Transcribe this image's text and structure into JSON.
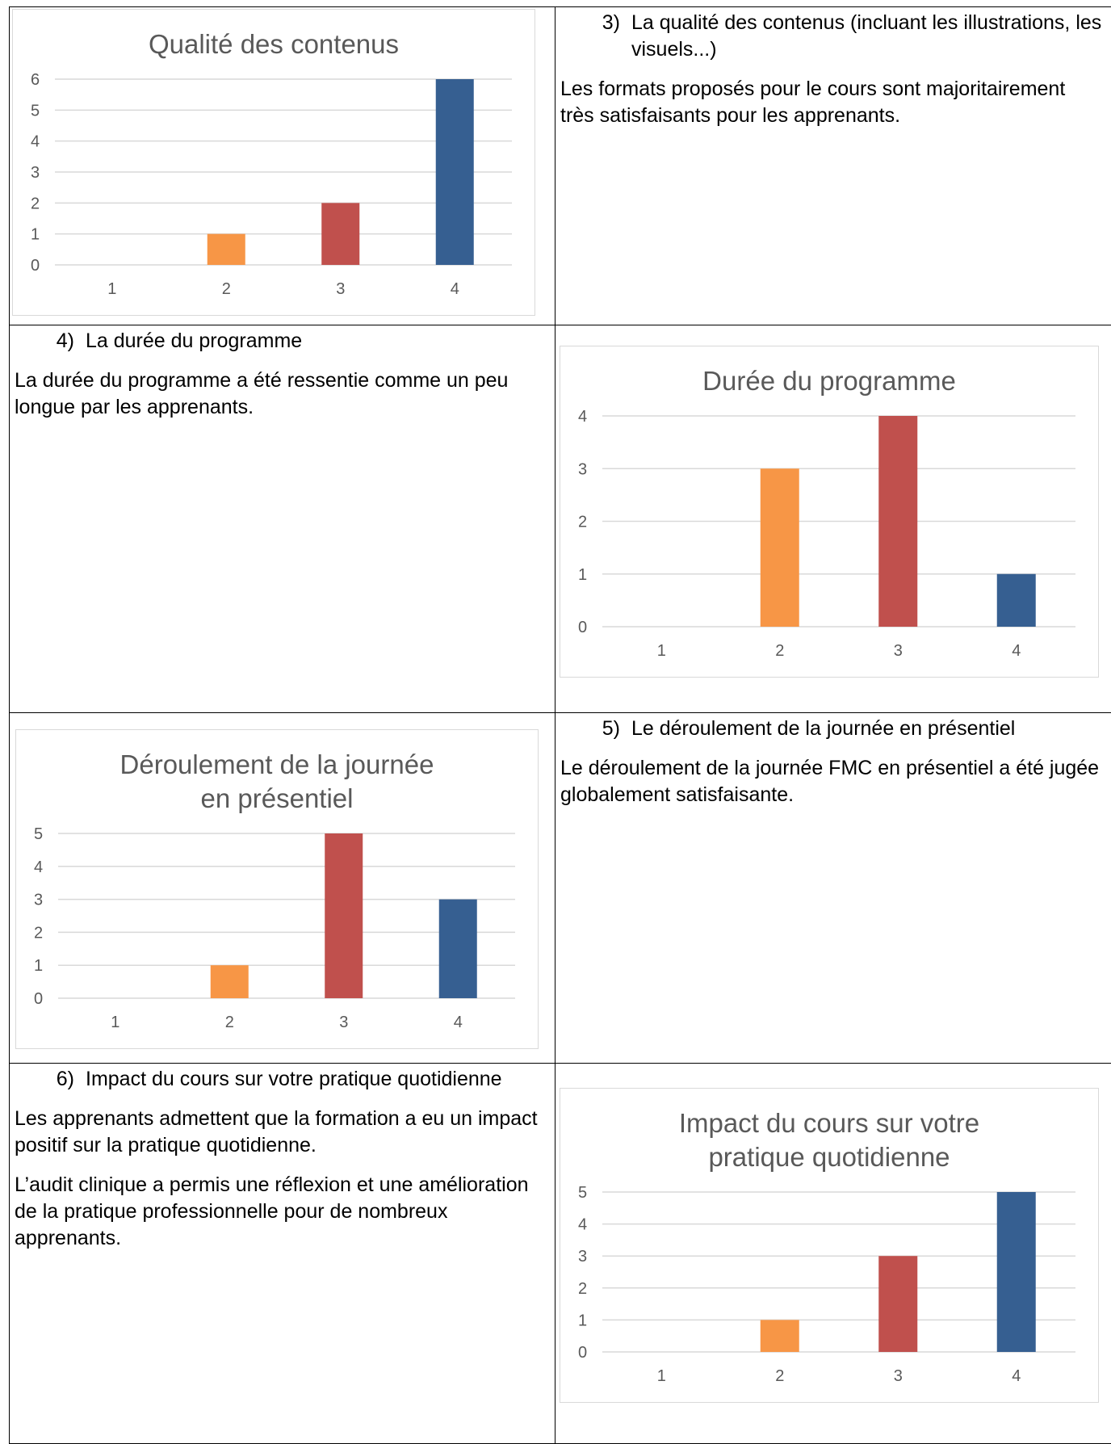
{
  "colors": {
    "bar_1": "#4472c4",
    "bar_2": "#f79646",
    "bar_3": "#c0504d",
    "bar_4": "#365f91",
    "grid": "#d9d9d9",
    "axis_text": "#595959"
  },
  "sections": {
    "s3": {
      "number": "3)",
      "title": "La qualité des contenus (incluant les illustrations, les visuels...)",
      "paragraphs": [
        "Les formats proposés pour le cours sont majoritairement très satisfaisants pour les apprenants."
      ]
    },
    "s4": {
      "number": "4)",
      "title": "La durée du programme",
      "paragraphs": [
        "La durée du programme a été ressentie comme un peu longue par les apprenants."
      ]
    },
    "s5": {
      "number": "5)",
      "title": "Le déroulement de la journée en présentiel",
      "paragraphs": [
        "Le déroulement de la journée FMC en présentiel a été jugée globalement satisfaisante."
      ]
    },
    "s6": {
      "number": "6)",
      "title": "Impact du cours sur votre pratique quotidienne",
      "paragraphs": [
        "Les apprenants admettent que la formation a eu un impact positif sur la pratique quotidienne.",
        "L’audit clinique a permis une réflexion et une amélioration de la pratique professionnelle pour de nombreux apprenants."
      ]
    }
  },
  "chart_data": [
    {
      "type": "bar",
      "title": "Qualité des contenus",
      "title_lines": [
        "Qualité des contenus"
      ],
      "categories": [
        "1",
        "2",
        "3",
        "4"
      ],
      "values": [
        0,
        1,
        2,
        6
      ],
      "ylim": [
        0,
        6
      ],
      "yticks": [
        "0",
        "1",
        "2",
        "3",
        "4",
        "5",
        "6"
      ],
      "grid": true,
      "legend": "none"
    },
    {
      "type": "bar",
      "title": "Durée du programme",
      "title_lines": [
        "Durée du programme"
      ],
      "categories": [
        "1",
        "2",
        "3",
        "4"
      ],
      "values": [
        0,
        3,
        4,
        1
      ],
      "ylim": [
        0,
        4
      ],
      "yticks": [
        "0",
        "1",
        "2",
        "3",
        "4"
      ],
      "grid": true,
      "legend": "none"
    },
    {
      "type": "bar",
      "title": "Déroulement de la journée en présentiel",
      "title_lines": [
        "Déroulement de la journée",
        "en présentiel"
      ],
      "categories": [
        "1",
        "2",
        "3",
        "4"
      ],
      "values": [
        0,
        1,
        5,
        3
      ],
      "ylim": [
        0,
        5
      ],
      "yticks": [
        "0",
        "1",
        "2",
        "3",
        "4",
        "5"
      ],
      "grid": true,
      "legend": "none"
    },
    {
      "type": "bar",
      "title": "Impact du cours sur votre pratique quotidienne",
      "title_lines": [
        "Impact du cours sur votre",
        "pratique quotidienne"
      ],
      "categories": [
        "1",
        "2",
        "3",
        "4"
      ],
      "values": [
        0,
        1,
        3,
        5
      ],
      "ylim": [
        0,
        5
      ],
      "yticks": [
        "0",
        "1",
        "2",
        "3",
        "4",
        "5"
      ],
      "grid": true,
      "legend": "none"
    }
  ]
}
